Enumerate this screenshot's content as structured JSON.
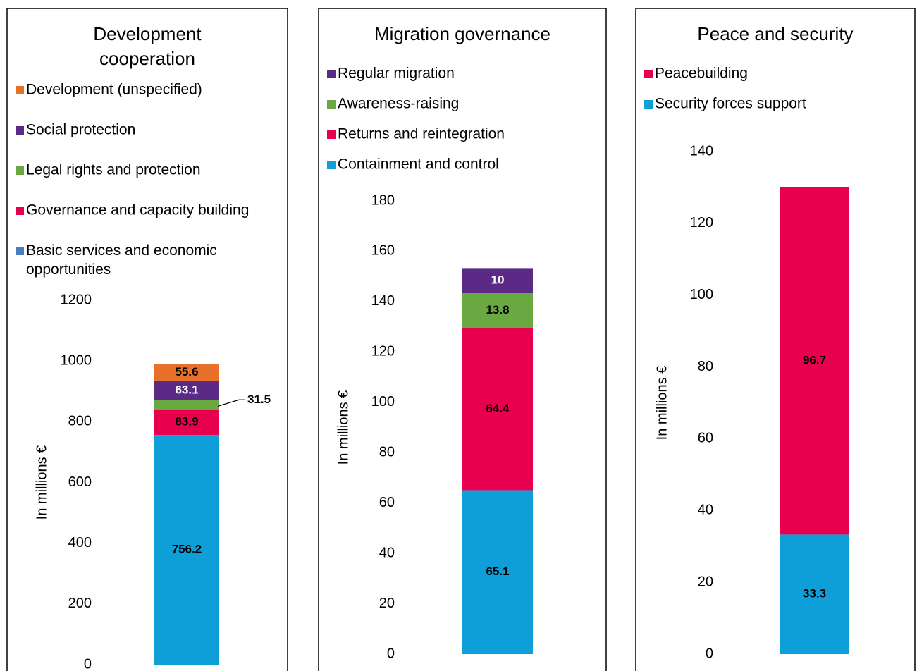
{
  "chart_data": [
    {
      "type": "stacked_bar",
      "title": "Development cooperation",
      "ylabel": "In millions €",
      "ylim": [
        0,
        1200
      ],
      "yticks": [
        0,
        200,
        400,
        600,
        800,
        1000,
        1200
      ],
      "series": [
        {
          "name": "Basic services and economic opportunities",
          "color": "#0e9fd8",
          "legend_color": "#4a7ebb",
          "label_color": "#000000",
          "values": [
            756.2
          ]
        },
        {
          "name": "Governance and capacity building",
          "color": "#e8004f",
          "label_color": "#000000",
          "values": [
            83.9
          ]
        },
        {
          "name": "Legal rights and protection",
          "color": "#6aa842",
          "label_color": "#000000",
          "label_outside": true,
          "values": [
            31.5
          ]
        },
        {
          "name": "Social protection",
          "color": "#5b2a86",
          "label_color": "#ffffff",
          "values": [
            63.1
          ]
        },
        {
          "name": "Development (unspecified)",
          "color": "#e9702a",
          "label_color": "#000000",
          "values": [
            55.6
          ]
        }
      ]
    },
    {
      "type": "stacked_bar",
      "title": "Migration governance",
      "ylabel": "In millions €",
      "ylim": [
        0,
        180
      ],
      "yticks": [
        0,
        20,
        40,
        60,
        80,
        100,
        120,
        140,
        160,
        180
      ],
      "series": [
        {
          "name": "Containment and control",
          "color": "#0e9fd8",
          "label_color": "#000000",
          "values": [
            65.1
          ]
        },
        {
          "name": "Returns and reintegration",
          "color": "#e8004f",
          "label_color": "#000000",
          "values": [
            64.4
          ]
        },
        {
          "name": "Awareness-raising",
          "color": "#6aa842",
          "label_color": "#000000",
          "values": [
            13.8
          ]
        },
        {
          "name": "Regular migration",
          "color": "#5b2a86",
          "label_color": "#ffffff",
          "values": [
            10
          ]
        }
      ]
    },
    {
      "type": "stacked_bar",
      "title": "Peace and security",
      "ylabel": "In millions €",
      "ylim": [
        0,
        140
      ],
      "yticks": [
        0,
        20,
        40,
        60,
        80,
        100,
        120,
        140
      ],
      "series": [
        {
          "name": "Security forces support",
          "color": "#0e9fd8",
          "label_color": "#000000",
          "values": [
            33.3
          ]
        },
        {
          "name": "Peacebuilding",
          "color": "#e8004f",
          "label_color": "#000000",
          "values": [
            96.7
          ]
        }
      ]
    }
  ]
}
